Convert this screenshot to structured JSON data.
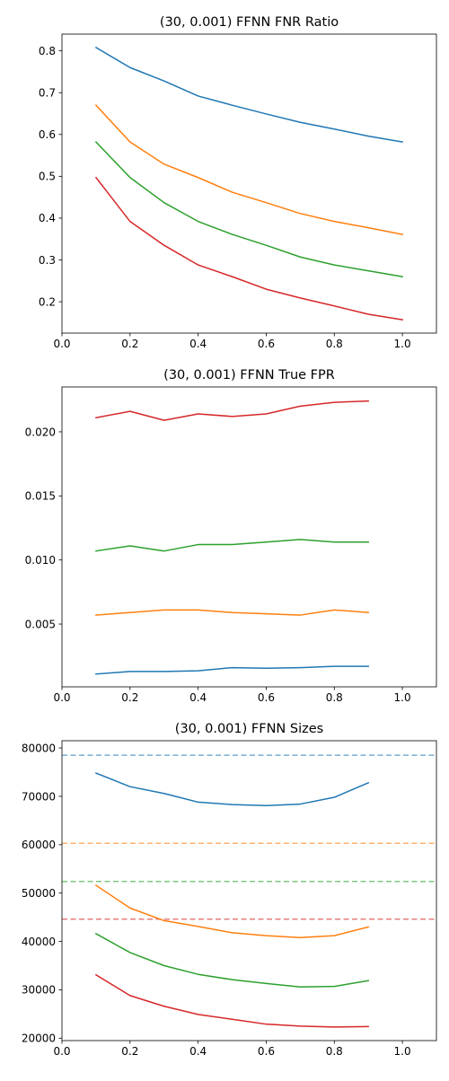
{
  "chart_data": [
    {
      "type": "line",
      "title": "(30, 0.001) FFNN FNR Ratio",
      "xlabel": "",
      "ylabel": "",
      "xlim": [
        0.0,
        1.1
      ],
      "ylim": [
        0.125,
        0.84
      ],
      "xticks": [
        0.0,
        0.2,
        0.4,
        0.6,
        0.8,
        1.0
      ],
      "xtick_labels": [
        "0.0",
        "0.2",
        "0.4",
        "0.6",
        "0.8",
        "1.0"
      ],
      "yticks": [
        0.2,
        0.3,
        0.4,
        0.5,
        0.6,
        0.7,
        0.8
      ],
      "ytick_labels": [
        "0.2",
        "0.3",
        "0.4",
        "0.5",
        "0.6",
        "0.7",
        "0.8"
      ],
      "grid": false,
      "x": [
        0.1,
        0.2,
        0.3,
        0.4,
        0.5,
        0.6,
        0.7,
        0.8,
        0.9,
        1.0
      ],
      "series": [
        {
          "name": "series-1",
          "color": "#1f77b4",
          "values": [
            0.808,
            0.76,
            0.728,
            0.692,
            0.67,
            0.649,
            0.629,
            0.613,
            0.596,
            0.582
          ]
        },
        {
          "name": "series-2",
          "color": "#ff7f0e",
          "values": [
            0.67,
            0.582,
            0.529,
            0.497,
            0.462,
            0.437,
            0.411,
            0.392,
            0.377,
            0.361
          ]
        },
        {
          "name": "series-3",
          "color": "#2ca02c",
          "values": [
            0.582,
            0.497,
            0.437,
            0.392,
            0.361,
            0.335,
            0.307,
            0.288,
            0.274,
            0.26
          ]
        },
        {
          "name": "series-4",
          "color": "#d62728",
          "values": [
            0.497,
            0.392,
            0.335,
            0.288,
            0.26,
            0.23,
            0.209,
            0.19,
            0.17,
            0.157
          ]
        }
      ]
    },
    {
      "type": "line",
      "title": "(30, 0.001) FFNN True FPR",
      "xlabel": "",
      "ylabel": "",
      "xlim": [
        0.0,
        1.1
      ],
      "ylim": [
        0.0001,
        0.0235
      ],
      "xticks": [
        0.0,
        0.2,
        0.4,
        0.6,
        0.8,
        1.0
      ],
      "xtick_labels": [
        "0.0",
        "0.2",
        "0.4",
        "0.6",
        "0.8",
        "1.0"
      ],
      "yticks": [
        0.005,
        0.01,
        0.015,
        0.02
      ],
      "ytick_labels": [
        "0.005",
        "0.010",
        "0.015",
        "0.020"
      ],
      "grid": false,
      "x": [
        0.1,
        0.2,
        0.3,
        0.4,
        0.5,
        0.6,
        0.7,
        0.8,
        0.9
      ],
      "series": [
        {
          "name": "series-1",
          "color": "#1f77b4",
          "values": [
            0.0011,
            0.0013,
            0.0013,
            0.00135,
            0.0016,
            0.00155,
            0.0016,
            0.0017,
            0.0017
          ]
        },
        {
          "name": "series-2",
          "color": "#ff7f0e",
          "values": [
            0.0057,
            0.0059,
            0.0061,
            0.0061,
            0.0059,
            0.0058,
            0.0057,
            0.0061,
            0.0059
          ]
        },
        {
          "name": "series-3",
          "color": "#2ca02c",
          "values": [
            0.0107,
            0.0111,
            0.0107,
            0.0112,
            0.0112,
            0.0114,
            0.0116,
            0.0114,
            0.0114
          ]
        },
        {
          "name": "series-4",
          "color": "#d62728",
          "values": [
            0.0211,
            0.0216,
            0.0209,
            0.0214,
            0.0212,
            0.0214,
            0.022,
            0.0223,
            0.0224
          ]
        }
      ]
    },
    {
      "type": "line",
      "title": "(30, 0.001) FFNN Sizes",
      "xlabel": "",
      "ylabel": "",
      "xlim": [
        0.0,
        1.1
      ],
      "ylim": [
        19500,
        81500
      ],
      "xticks": [
        0.0,
        0.2,
        0.4,
        0.6,
        0.8,
        1.0
      ],
      "xtick_labels": [
        "0.0",
        "0.2",
        "0.4",
        "0.6",
        "0.8",
        "1.0"
      ],
      "yticks": [
        20000,
        30000,
        40000,
        50000,
        60000,
        70000,
        80000
      ],
      "ytick_labels": [
        "20000",
        "30000",
        "40000",
        "50000",
        "60000",
        "70000",
        "80000"
      ],
      "grid": false,
      "x": [
        0.1,
        0.2,
        0.3,
        0.4,
        0.5,
        0.6,
        0.7,
        0.8,
        0.9
      ],
      "series": [
        {
          "name": "series-1",
          "color": "#1f77b4",
          "values": [
            74800,
            72000,
            70600,
            68800,
            68300,
            68100,
            68400,
            69800,
            72800
          ]
        },
        {
          "name": "series-2",
          "color": "#ff7f0e",
          "values": [
            51600,
            46900,
            44300,
            43100,
            41800,
            41200,
            40800,
            41200,
            43000
          ]
        },
        {
          "name": "series-3",
          "color": "#2ca02c",
          "values": [
            41600,
            37700,
            35000,
            33200,
            32100,
            31300,
            30600,
            30700,
            31900
          ]
        },
        {
          "name": "series-4",
          "color": "#d62728",
          "values": [
            33100,
            28800,
            26600,
            24900,
            23900,
            22900,
            22500,
            22300,
            22400
          ]
        }
      ],
      "reference_lines": [
        {
          "name": "baseline-1",
          "color": "#1f77b4",
          "value": 78500
        },
        {
          "name": "baseline-2",
          "color": "#ff7f0e",
          "value": 60300
        },
        {
          "name": "baseline-3",
          "color": "#2ca02c",
          "value": 52400
        },
        {
          "name": "baseline-4",
          "color": "#d62728",
          "value": 44600
        }
      ]
    }
  ]
}
